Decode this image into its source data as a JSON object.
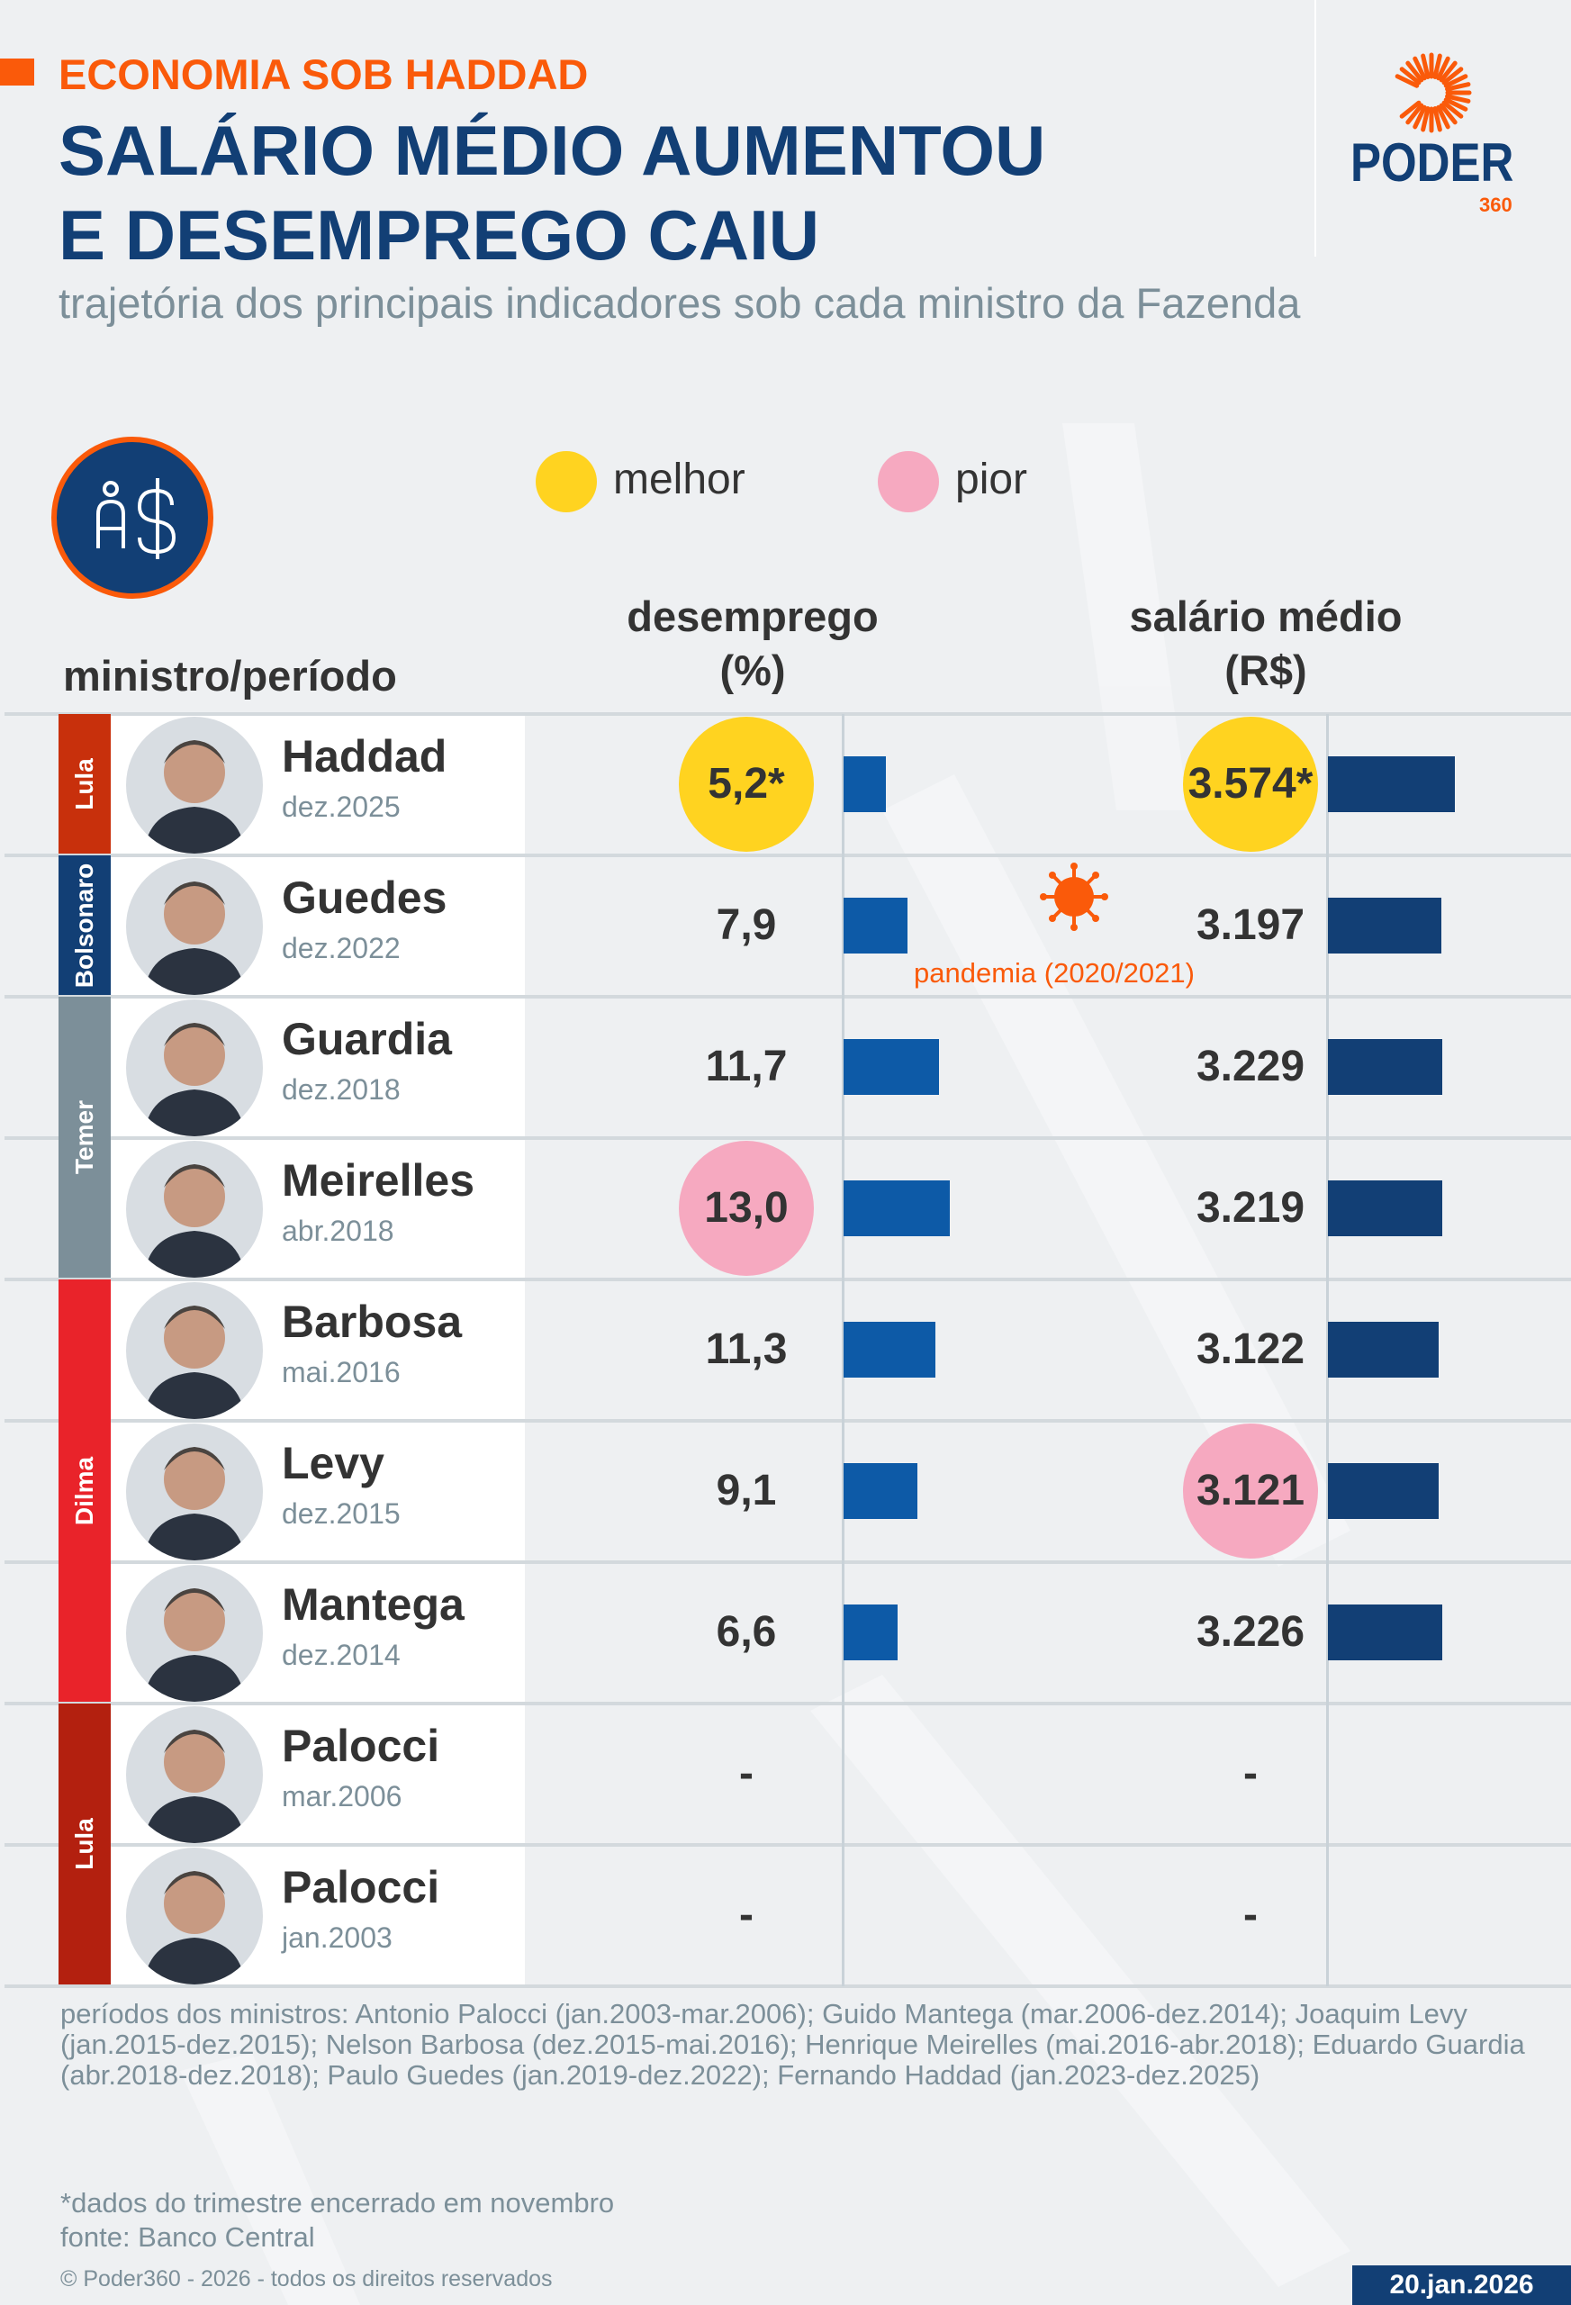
{
  "header": {
    "kicker": "ECONOMIA SOB HADDAD",
    "title_line1": "SALÁRIO MÉDIO AUMENTOU",
    "title_line2": "E DESEMPREGO CAIU",
    "subtitle": "trajetória dos principais indicadores sob cada ministro da Fazenda"
  },
  "logo": {
    "word": "PODER",
    "number": "360"
  },
  "icon": "person-money-icon",
  "legend": {
    "better": "melhor",
    "worse": "pior",
    "better_color": "#ffd320",
    "worse_color": "#f6a9c0"
  },
  "columns": {
    "minister": "ministro/período",
    "unemployment_l1": "desemprego",
    "unemployment_l2": "(%)",
    "salary_l1": "salário médio",
    "salary_l2": "(R$)"
  },
  "colors": {
    "unemployment_bar": "#0d5aa7",
    "salary_bar": "#123f75",
    "accent": "#fa5a0a"
  },
  "groups": [
    {
      "label": "Lula",
      "color": "#c8300c",
      "rows": [
        0,
        0
      ]
    },
    {
      "label": "Bolsonaro",
      "color": "#123f75",
      "rows": [
        1,
        1
      ]
    },
    {
      "label": "Temer",
      "color": "#7c8f99",
      "rows": [
        2,
        3
      ]
    },
    {
      "label": "Dilma",
      "color": "#e9232a",
      "rows": [
        4,
        6
      ]
    },
    {
      "label": "Lula",
      "color": "#b3200f",
      "rows": [
        7,
        8
      ]
    }
  ],
  "annotation": {
    "text": "pandemia (2020/2021)",
    "icon": "virus-icon"
  },
  "chart_data": {
    "type": "bar",
    "categories": [
      "Haddad dez.2025",
      "Guedes dez.2022",
      "Guardia dez.2018",
      "Meirelles abr.2018",
      "Barbosa mai.2016",
      "Levy dez.2015",
      "Mantega dez.2014",
      "Palocci mar.2006",
      "Palocci jan.2003"
    ],
    "series": [
      {
        "name": "desemprego (%)",
        "values": [
          5.2,
          7.9,
          11.7,
          13.0,
          11.3,
          9.1,
          6.6,
          null,
          null
        ],
        "labels": [
          "5,2*",
          "7,9",
          "11,7",
          "13,0",
          "11,3",
          "9,1",
          "6,6",
          "-",
          "-"
        ],
        "best_index": 0,
        "worst_index": 3
      },
      {
        "name": "salário médio (R$)",
        "values": [
          3574,
          3197,
          3229,
          3219,
          3122,
          3121,
          3226,
          null,
          null
        ],
        "labels": [
          "3.574*",
          "3.197",
          "3.229",
          "3.219",
          "3.122",
          "3.121",
          "3.226",
          "-",
          "-"
        ],
        "best_index": 0,
        "worst_index": 5
      }
    ]
  },
  "rows": [
    {
      "name": "Haddad",
      "date": "dez.2025"
    },
    {
      "name": "Guedes",
      "date": "dez.2022"
    },
    {
      "name": "Guardia",
      "date": "dez.2018"
    },
    {
      "name": "Meirelles",
      "date": "abr.2018"
    },
    {
      "name": "Barbosa",
      "date": "mai.2016"
    },
    {
      "name": "Levy",
      "date": "dez.2015"
    },
    {
      "name": "Mantega",
      "date": "dez.2014"
    },
    {
      "name": "Palocci",
      "date": "mar.2006"
    },
    {
      "name": "Palocci",
      "date": "jan.2003"
    }
  ],
  "footer": {
    "periods": "períodos dos ministros: Antonio Palocci (jan.2003-mar.2006); Guido Mantega (mar.2006-dez.2014); Joaquim Levy (jan.2015-dez.2015); Nelson Barbosa (dez.2015-mai.2016); Henrique Meirelles (mai.2016-abr.2018); Eduardo Guardia (abr.2018-dez.2018); Paulo Guedes (jan.2019-dez.2022); Fernando Haddad (jan.2023-dez.2025)",
    "note": "*dados do trimestre encerrado em novembro",
    "source": "fonte: Banco Central",
    "copyright": "© Poder360 - 2026 - todos os direitos reservados",
    "date": "20.jan.2026"
  }
}
